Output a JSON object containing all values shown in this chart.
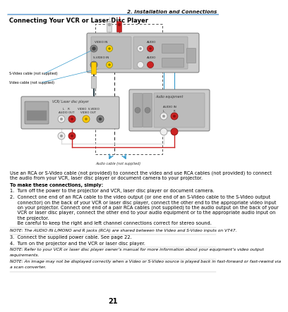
{
  "page_number": "21",
  "chapter_title": "2. Installation and Connections",
  "section_title": "Connecting Your VCR or Laser Disc Player",
  "bg_color": "#ffffff",
  "header_line_color": "#5b9bd5",
  "body_para": "Use an RCA or S-Video cable (not provided) to connect the video and use RCA cables (not provided) to connect the audio from your VCR, laser disc player or document camera to your projector.",
  "bold_heading": "To make these connections, simply:",
  "step1": "1.  Turn off the power to the projector and VCR, laser disc player or document camera.",
  "step2a": "2.  Connect one end of an RCA cable to the video output (or one end of an S-Video cable to the S-Video output",
  "step2b": "     connector) on the back of your VCR or laser disc player, connect the other end to the appropriate video input",
  "step2c": "     on your projector. Connect one end of a pair RCA cables (not supplied) to the audio output on the back of your",
  "step2d": "     VCR or laser disc player, connect the other end to your audio equipment or to the appropriate audio input on",
  "step2e": "     the projector.",
  "step2f": "     Be careful to keep the right and left channel connections correct for stereo sound.",
  "note1": "NOTE: The AUDIO IN L/MONO and R jacks (RCA) are shared between the Video and S-Video inputs on VT47.",
  "step3": "3.  Connect the supplied power cable. See page 22.",
  "step4": "4.  Turn on the projector and the VCR or laser disc player.",
  "note2": "NOTE: Refer to your VCR or laser disc player owner’s manual for more information about your equipment’s video output requirements.",
  "note3": "NOTE: An image may not be displayed correctly when a Video or S-Video source is played back in fast-forward or fast-rewind via a scan converter.",
  "svideo_label": "S-Video cable (not supplied)",
  "video_label": "Video cable (not supplied)",
  "audio_label": "Audio cable (not supplied)",
  "vcr_label": "VCR/ Laser disc player",
  "audio_eq_label": "Audio equipment",
  "proj_labels_row1": [
    "VIDEO IN",
    "AUDIO"
  ],
  "proj_labels_row2": [
    "S-VIDEO IN",
    "AUDIO"
  ],
  "vcr_port_labels": [
    "L    R",
    "AUDIO OUT",
    "VIDEO  S-VIDEO",
    "VIDEO OUT"
  ],
  "audio_in_label": "AUDIO IN"
}
